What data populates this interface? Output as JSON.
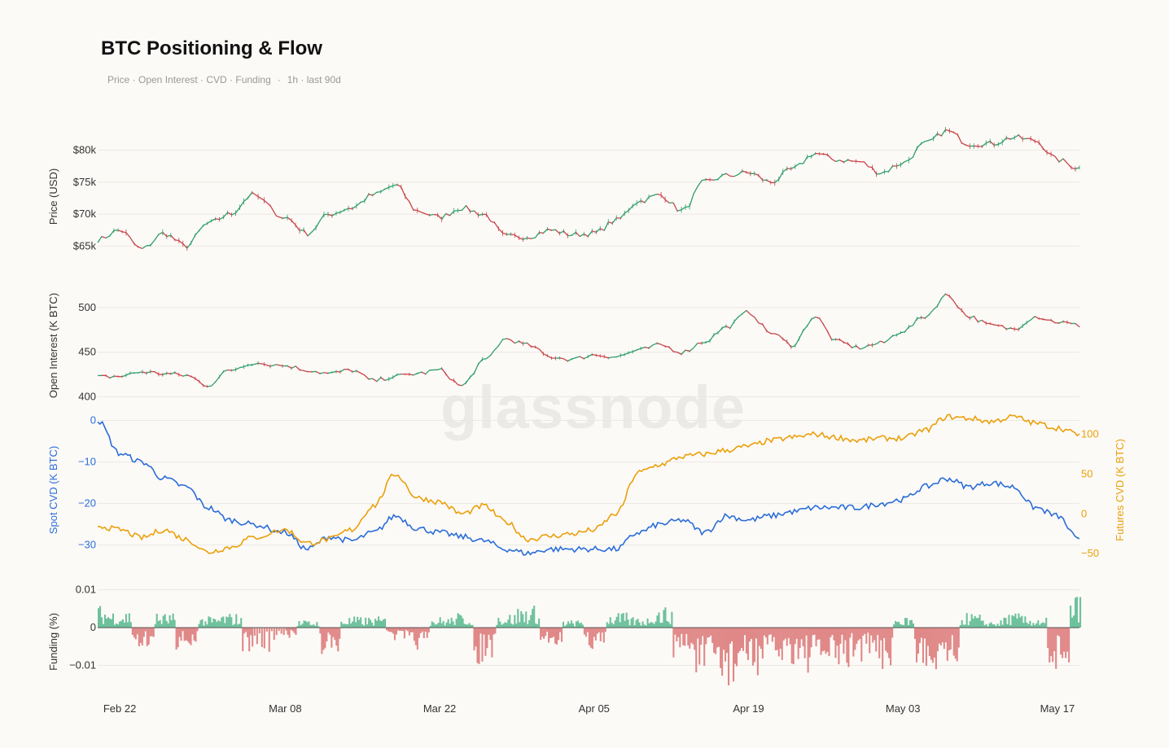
{
  "title": "BTC Positioning & Flow",
  "subtitle": {
    "metrics": "Price · Open Interest · CVD · Funding",
    "separator": "·",
    "resolution": "1h · last 90d"
  },
  "watermark": "glassnode",
  "colors": {
    "up": "#2f9e6b",
    "down": "#c8454a",
    "spot_cvd": "#2a6dd9",
    "futures_cvd": "#eaa00a",
    "funding_pos": "#6cc19b",
    "funding_neg": "#e08888",
    "grid": "#ebe8e3",
    "background": "#fcfaf7"
  },
  "chart_data": [
    {
      "type": "line",
      "name": "price",
      "style": "candlestick",
      "ylabel": "Price (USD)",
      "ylim": [
        62000,
        83500
      ],
      "yticks": [
        65000,
        70000,
        75000,
        80000
      ],
      "ytick_labels": [
        "$65k",
        "$70k",
        "$75k",
        "$80k"
      ],
      "grid": true,
      "x": [
        "2024-02-20",
        "2024-02-22",
        "2024-02-24",
        "2024-02-26",
        "2024-02-28",
        "2024-03-01",
        "2024-03-03",
        "2024-03-05",
        "2024-03-08",
        "2024-03-10",
        "2024-03-12",
        "2024-03-14",
        "2024-03-16",
        "2024-03-18",
        "2024-03-20",
        "2024-03-22",
        "2024-03-24",
        "2024-03-26",
        "2024-03-28",
        "2024-03-30",
        "2024-04-01",
        "2024-04-03",
        "2024-04-05",
        "2024-04-07",
        "2024-04-09",
        "2024-04-11",
        "2024-04-13",
        "2024-04-15",
        "2024-04-17",
        "2024-04-19",
        "2024-04-21",
        "2024-04-23",
        "2024-04-25",
        "2024-04-27",
        "2024-04-29",
        "2024-05-01",
        "2024-05-03",
        "2024-05-05",
        "2024-05-07",
        "2024-05-09",
        "2024-05-11",
        "2024-05-13",
        "2024-05-15",
        "2024-05-17",
        "2024-05-19"
      ],
      "y": [
        66000,
        67500,
        64500,
        67000,
        65000,
        68500,
        70000,
        73000,
        69500,
        67000,
        70000,
        71000,
        73000,
        74500,
        70500,
        69500,
        71000,
        70000,
        66500,
        66500,
        67500,
        66800,
        67000,
        69000,
        72000,
        73000,
        70500,
        75000,
        76000,
        76500,
        75000,
        77000,
        79500,
        78500,
        78200,
        76500,
        78000,
        81000,
        83000,
        81000,
        81000,
        82000,
        81500,
        78500,
        77200
      ]
    },
    {
      "type": "line",
      "name": "open_interest",
      "style": "candlestick",
      "ylabel": "Open Interest (K BTC)",
      "ylim": [
        395,
        520
      ],
      "yticks": [
        400,
        450,
        500
      ],
      "ytick_labels": [
        "400",
        "450",
        "500"
      ],
      "grid": true,
      "x": [
        "2024-02-20",
        "2024-02-22",
        "2024-02-24",
        "2024-02-26",
        "2024-02-28",
        "2024-03-01",
        "2024-03-03",
        "2024-03-05",
        "2024-03-08",
        "2024-03-10",
        "2024-03-12",
        "2024-03-14",
        "2024-03-16",
        "2024-03-18",
        "2024-03-20",
        "2024-03-22",
        "2024-03-24",
        "2024-03-26",
        "2024-03-28",
        "2024-03-30",
        "2024-04-01",
        "2024-04-03",
        "2024-04-05",
        "2024-04-07",
        "2024-04-09",
        "2024-04-11",
        "2024-04-13",
        "2024-04-15",
        "2024-04-17",
        "2024-04-19",
        "2024-04-21",
        "2024-04-23",
        "2024-04-25",
        "2024-04-27",
        "2024-04-29",
        "2024-05-01",
        "2024-05-03",
        "2024-05-05",
        "2024-05-07",
        "2024-05-09",
        "2024-05-11",
        "2024-05-13",
        "2024-05-15",
        "2024-05-17",
        "2024-05-19"
      ],
      "y": [
        422,
        423,
        428,
        426,
        424,
        413,
        430,
        438,
        435,
        430,
        426,
        430,
        418,
        423,
        426,
        430,
        412,
        440,
        465,
        458,
        445,
        442,
        447,
        445,
        452,
        458,
        450,
        462,
        478,
        495,
        472,
        458,
        490,
        462,
        455,
        460,
        474,
        490,
        514,
        490,
        480,
        476,
        490,
        484,
        480
      ]
    },
    {
      "type": "line",
      "name": "cvd",
      "ylabel": "Spot CVD (K BTC)",
      "ylabel_right": "Futures CVD (K BTC)",
      "ylim": [
        -34,
        0.5
      ],
      "ylim_right": [
        -60,
        120
      ],
      "yticks": [
        0,
        -10,
        -20,
        -30
      ],
      "ytick_labels": [
        "0",
        "−10",
        "−20",
        "−30"
      ],
      "yticks_right": [
        100,
        50,
        0,
        -50
      ],
      "ytick_labels_right": [
        "100",
        "50",
        "0",
        "−50"
      ],
      "grid": true,
      "x": [
        "2024-02-20",
        "2024-02-22",
        "2024-02-24",
        "2024-02-26",
        "2024-02-28",
        "2024-03-01",
        "2024-03-03",
        "2024-03-05",
        "2024-03-08",
        "2024-03-10",
        "2024-03-12",
        "2024-03-14",
        "2024-03-16",
        "2024-03-18",
        "2024-03-20",
        "2024-03-22",
        "2024-03-24",
        "2024-03-26",
        "2024-03-28",
        "2024-03-30",
        "2024-04-01",
        "2024-04-03",
        "2024-04-05",
        "2024-04-07",
        "2024-04-09",
        "2024-04-11",
        "2024-04-13",
        "2024-04-15",
        "2024-04-17",
        "2024-04-19",
        "2024-04-21",
        "2024-04-23",
        "2024-04-25",
        "2024-04-27",
        "2024-04-29",
        "2024-05-01",
        "2024-05-03",
        "2024-05-05",
        "2024-05-07",
        "2024-05-09",
        "2024-05-11",
        "2024-05-13",
        "2024-05-15",
        "2024-05-17",
        "2024-05-19"
      ],
      "series": [
        {
          "name": "Spot CVD",
          "axis": "left",
          "values": [
            0,
            -8,
            -10,
            -14,
            -16,
            -21,
            -24,
            -25,
            -27,
            -31,
            -28,
            -29,
            -27,
            -23,
            -26,
            -27,
            -28,
            -29,
            -31,
            -32,
            -31,
            -31,
            -31,
            -31,
            -27,
            -25,
            -24,
            -27,
            -23,
            -24,
            -23,
            -22,
            -21,
            -21,
            -21,
            -20,
            -19,
            -16,
            -14,
            -16,
            -15,
            -16,
            -21,
            -23,
            -29
          ]
        },
        {
          "name": "Futures CVD",
          "axis": "right",
          "values": [
            -15,
            -20,
            -30,
            -20,
            -32,
            -48,
            -42,
            -30,
            -20,
            -37,
            -32,
            -20,
            10,
            50,
            20,
            15,
            0,
            10,
            -10,
            -32,
            -28,
            -25,
            -20,
            0,
            52,
            62,
            72,
            75,
            80,
            85,
            92,
            96,
            100,
            96,
            92,
            95,
            95,
            105,
            122,
            120,
            116,
            122,
            114,
            108,
            100
          ]
        }
      ]
    },
    {
      "type": "bar",
      "name": "funding",
      "ylabel": "Funding (%)",
      "ylim": [
        -0.0185,
        0.011
      ],
      "yticks": [
        0.01,
        0,
        -0.01
      ],
      "ytick_labels": [
        "0.01",
        "0",
        "−0.01"
      ],
      "grid": true,
      "x": [
        "2024-02-20",
        "2024-02-22",
        "2024-02-24",
        "2024-02-26",
        "2024-02-28",
        "2024-03-01",
        "2024-03-03",
        "2024-03-05",
        "2024-03-08",
        "2024-03-10",
        "2024-03-12",
        "2024-03-14",
        "2024-03-16",
        "2024-03-18",
        "2024-03-20",
        "2024-03-22",
        "2024-03-24",
        "2024-03-26",
        "2024-03-28",
        "2024-03-30",
        "2024-04-01",
        "2024-04-03",
        "2024-04-05",
        "2024-04-07",
        "2024-04-09",
        "2024-04-11",
        "2024-04-13",
        "2024-04-15",
        "2024-04-17",
        "2024-04-19",
        "2024-04-21",
        "2024-04-23",
        "2024-04-25",
        "2024-04-27",
        "2024-04-29",
        "2024-05-01",
        "2024-05-03",
        "2024-05-05",
        "2024-05-07",
        "2024-05-09",
        "2024-05-11",
        "2024-05-13",
        "2024-05-15",
        "2024-05-17",
        "2024-05-19"
      ],
      "y": [
        0.006,
        0.005,
        -0.006,
        0.004,
        -0.006,
        0.003,
        0.004,
        -0.007,
        -0.004,
        0.002,
        -0.008,
        0.003,
        0.003,
        -0.004,
        -0.006,
        0.003,
        0.004,
        -0.01,
        0.004,
        0.006,
        -0.005,
        0.002,
        -0.006,
        0.004,
        0.003,
        0.006,
        -0.008,
        -0.014,
        -0.017,
        -0.013,
        -0.011,
        -0.01,
        -0.012,
        -0.012,
        -0.009,
        -0.011,
        0.003,
        -0.012,
        -0.009,
        0.004,
        0.002,
        0.004,
        0.003,
        -0.011,
        0.009
      ]
    }
  ],
  "x_axis": {
    "ticks": [
      "2024-02-22",
      "2024-03-08",
      "2024-03-22",
      "2024-04-05",
      "2024-04-19",
      "2024-05-03",
      "2024-05-17"
    ],
    "tick_labels": [
      "Feb 22",
      "Mar 08",
      "Mar 22",
      "Apr 05",
      "Apr 19",
      "May 03",
      "May 17"
    ]
  }
}
